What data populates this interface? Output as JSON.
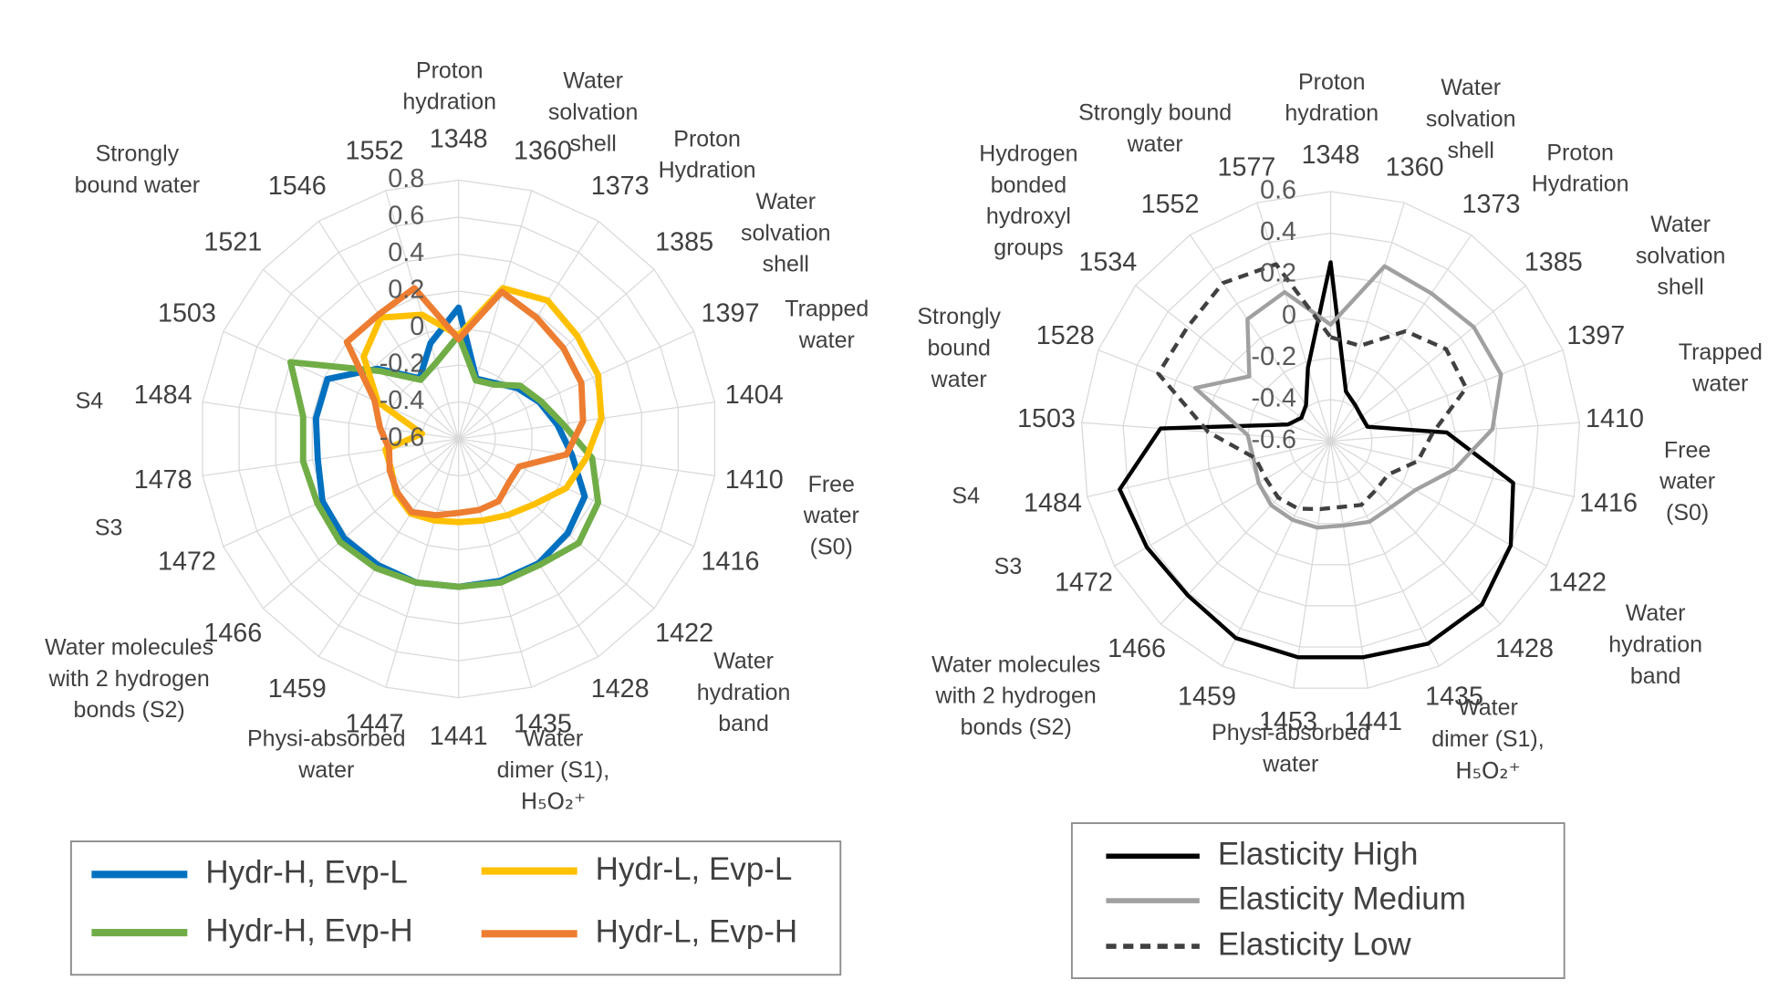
{
  "chart_data": [
    {
      "type": "radar",
      "categories": [
        "1348",
        "1360",
        "1373",
        "1385",
        "1397",
        "1404",
        "1410",
        "1416",
        "1422",
        "1428",
        "1435",
        "1441",
        "1447",
        "1459",
        "1466",
        "1472",
        "1478",
        "1484",
        "1503",
        "1521",
        "1546",
        "1552"
      ],
      "rlim": [
        -0.6,
        0.8
      ],
      "rticks": [
        -0.6,
        -0.4,
        -0.2,
        0,
        0.2,
        0.4,
        0.6,
        0.8
      ],
      "grid": true,
      "series": [
        {
          "name": "Hydr-H, Evp-L",
          "color": "#0070c0",
          "values": [
            0.11,
            -0.26,
            -0.24,
            -0.18,
            -0.12,
            -0.06,
            0.02,
            0.15,
            0.18,
            0.2,
            0.2,
            0.2,
            0.21,
            0.21,
            0.22,
            0.21,
            0.17,
            0.18,
            0.18,
            -0.02,
            -0.21,
            -0.06
          ]
        },
        {
          "name": "Hydr-H, Evp-H",
          "color": "#70ad47",
          "values": [
            -0.04,
            -0.27,
            -0.25,
            -0.16,
            -0.11,
            -0.03,
            0.13,
            0.23,
            0.26,
            0.21,
            0.21,
            0.2,
            0.21,
            0.23,
            0.25,
            0.24,
            0.25,
            0.25,
            0.4,
            -0.04,
            -0.22,
            -0.17
          ]
        },
        {
          "name": "Hydr-L, Evp-L",
          "color": "#ffc000",
          "values": [
            -0.04,
            0.25,
            0.29,
            0.25,
            0.23,
            0.18,
            0.1,
            0.04,
            -0.06,
            -0.11,
            -0.14,
            -0.15,
            -0.14,
            -0.12,
            -0.15,
            -0.2,
            -0.2,
            -0.4,
            -0.12,
            0.08,
            0.18,
            0.1
          ]
        },
        {
          "name": "Hydr-L, Evp-H",
          "color": "#ed7d31",
          "values": [
            -0.06,
            0.23,
            0.18,
            0.15,
            0.13,
            0.08,
            -0.01,
            -0.24,
            -0.24,
            -0.2,
            -0.2,
            -0.2,
            -0.17,
            -0.13,
            -0.16,
            -0.19,
            -0.22,
            -0.17,
            -0.1,
            0.2,
            0.2,
            0.25
          ]
        }
      ],
      "annotations": [
        [
          "Proton",
          "hydration"
        ],
        [
          "Water",
          "solvation",
          "shell"
        ],
        [
          "Proton",
          "Hydration"
        ],
        [
          "Water",
          "solvation",
          "shell"
        ],
        [
          "Trapped",
          "water"
        ],
        [
          "Free",
          "water",
          "(S0)"
        ],
        [
          "Water",
          "hydration",
          "band"
        ],
        [
          "Water",
          "dimer (S1),",
          "H₅O₂⁺"
        ],
        [
          "Physi-absorbed",
          "water"
        ],
        [
          "Water molecules",
          "with 2 hydrogen",
          "bonds (S2)"
        ],
        [
          "S3"
        ],
        [
          "S4"
        ],
        [
          "Strongly",
          "bound water"
        ]
      ]
    },
    {
      "type": "radar",
      "categories": [
        "1348",
        "1360",
        "1373",
        "1385",
        "1397",
        "1410",
        "1416",
        "1422",
        "1428",
        "1435",
        "1441",
        "1453",
        "1459",
        "1466",
        "1472",
        "1484",
        "1503",
        "1528",
        "1534",
        "1552",
        "1577"
      ],
      "rlim": [
        -0.6,
        0.6
      ],
      "rticks": [
        -0.6,
        -0.4,
        -0.2,
        0,
        0.2,
        0.4,
        0.6
      ],
      "grid": true,
      "series": [
        {
          "name": "Elasticity High",
          "color": "#000000",
          "dashed": false,
          "values": [
            0.26,
            -0.35,
            -0.39,
            -0.41,
            -0.41,
            -0.04,
            0.3,
            0.4,
            0.47,
            0.48,
            0.45,
            0.45,
            0.45,
            0.41,
            0.42,
            0.44,
            0.22,
            -0.38,
            -0.42,
            -0.39,
            -0.23
          ]
        },
        {
          "name": "Elasticity Medium",
          "color": "#a0a0a0",
          "dashed": false,
          "values": [
            -0.04,
            0.28,
            0.26,
            0.28,
            0.28,
            0.18,
            0.01,
            -0.13,
            -0.17,
            -0.17,
            -0.19,
            -0.18,
            -0.18,
            -0.18,
            -0.2,
            -0.22,
            -0.2,
            0.1,
            -0.1,
            0.11,
            0.15
          ]
        },
        {
          "name": "Elasticity Low",
          "color": "#404040",
          "dashed": true,
          "values": [
            -0.1,
            -0.12,
            0.04,
            0.11,
            0.1,
            -0.11,
            -0.17,
            -0.28,
            -0.28,
            -0.26,
            -0.28,
            -0.27,
            -0.24,
            -0.23,
            -0.24,
            -0.23,
            -0.01,
            0.29,
            0.28,
            0.32,
            0.29
          ]
        }
      ],
      "annotations": [
        [
          "Proton",
          "hydration"
        ],
        [
          "Water",
          "solvation",
          "shell"
        ],
        [
          "Proton",
          "Hydration"
        ],
        [
          "Water",
          "solvation",
          "shell"
        ],
        [
          "Trapped",
          "water"
        ],
        [
          "Free",
          "water",
          "(S0)"
        ],
        [
          "Water",
          "hydration",
          "band"
        ],
        [
          "Water",
          "dimer (S1),",
          "H₅O₂⁺"
        ],
        [
          "Physi-absorbed",
          "water"
        ],
        [
          "Water molecules",
          "with 2 hydrogen",
          "bonds (S2)"
        ],
        [
          "S3"
        ],
        [
          "S4"
        ],
        [
          "Strongly",
          "bound",
          "water"
        ],
        [
          "Hydrogen",
          "bonded",
          "hydroxyl",
          "groups"
        ],
        [
          "Strongly bound",
          "water"
        ]
      ]
    }
  ]
}
